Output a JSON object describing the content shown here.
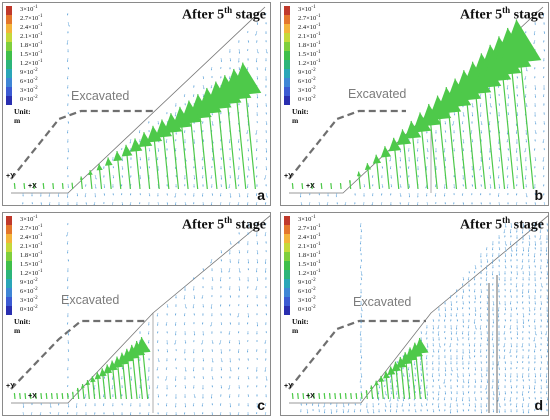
{
  "legend": {
    "items": [
      {
        "mant": "3×10",
        "exp": "-1",
        "color": "#c0392b"
      },
      {
        "mant": "2.7×10",
        "exp": "-1",
        "color": "#e4762b"
      },
      {
        "mant": "2.4×10",
        "exp": "-1",
        "color": "#f3b43a"
      },
      {
        "mant": "2.1×10",
        "exp": "-1",
        "color": "#c6d93a"
      },
      {
        "mant": "1.8×10",
        "exp": "-1",
        "color": "#7fcf3d"
      },
      {
        "mant": "1.5×10",
        "exp": "-1",
        "color": "#3fbf4a"
      },
      {
        "mant": "1.2×10",
        "exp": "-1",
        "color": "#2bb57a"
      },
      {
        "mant": "9×10",
        "exp": "-2",
        "color": "#2aa6b8"
      },
      {
        "mant": "6×10",
        "exp": "-2",
        "color": "#3f86d6"
      },
      {
        "mant": "3×10",
        "exp": "-2",
        "color": "#3c5bd3"
      },
      {
        "mant": "0×10",
        "exp": "-2",
        "color": "#2a2fb0"
      }
    ],
    "unit": "Unit: m"
  },
  "stage_title": {
    "pre": "After 5",
    "sup": "th",
    "post": " stage"
  },
  "excavated_label": "Excavated",
  "axis": {
    "y": "+Y",
    "x": "+X"
  },
  "panels": [
    {
      "label": "a",
      "variant": "a"
    },
    {
      "label": "b",
      "variant": "b"
    },
    {
      "label": "c",
      "variant": "c"
    },
    {
      "label": "d",
      "variant": "d"
    }
  ],
  "colors": {
    "border": "#8a8a8a",
    "grey_dashed": "#6f6f6f",
    "small_arrow": "#5aa0d8",
    "large_arrow": "#4ec94a"
  }
}
